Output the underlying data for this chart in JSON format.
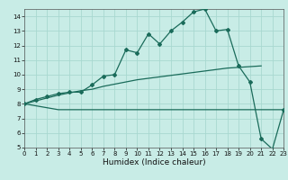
{
  "xlabel": "Humidex (Indice chaleur)",
  "bg_color": "#c8ece6",
  "grid_color": "#a8d8d0",
  "line_color": "#1a6b5a",
  "line1_x": [
    0,
    1,
    2,
    3,
    4,
    5,
    6,
    7,
    8,
    9,
    10,
    11,
    12,
    13,
    14,
    15,
    16,
    17,
    18,
    19,
    20,
    21,
    22,
    23
  ],
  "line1_y": [
    8.0,
    8.3,
    8.5,
    8.7,
    8.8,
    8.8,
    9.3,
    9.9,
    10.0,
    11.7,
    11.5,
    12.8,
    12.1,
    13.0,
    13.6,
    14.3,
    14.5,
    13.0,
    13.1,
    10.6,
    9.5,
    5.6,
    4.9,
    7.6
  ],
  "line2_x": [
    0,
    1,
    2,
    3,
    4,
    5,
    6,
    7,
    8,
    9,
    10,
    11,
    12,
    13,
    14,
    15,
    16,
    17,
    18,
    19,
    20,
    21
  ],
  "line2_y": [
    8.0,
    8.2,
    8.4,
    8.6,
    8.75,
    8.9,
    9.0,
    9.2,
    9.35,
    9.5,
    9.65,
    9.75,
    9.85,
    9.95,
    10.05,
    10.15,
    10.25,
    10.35,
    10.45,
    10.5,
    10.55,
    10.6
  ],
  "line3_x": [
    0,
    3,
    4,
    5,
    6,
    7,
    8,
    9,
    10,
    11,
    12,
    13,
    14,
    15,
    16,
    17,
    18,
    19,
    20,
    23
  ],
  "line3_y": [
    8.0,
    7.6,
    7.6,
    7.6,
    7.6,
    7.6,
    7.6,
    7.6,
    7.6,
    7.6,
    7.6,
    7.6,
    7.6,
    7.6,
    7.6,
    7.6,
    7.6,
    7.6,
    7.6,
    7.6
  ],
  "xlim": [
    0,
    23
  ],
  "ylim": [
    5,
    14.5
  ],
  "yticks": [
    5,
    6,
    7,
    8,
    9,
    10,
    11,
    12,
    13,
    14
  ],
  "xticks": [
    0,
    1,
    2,
    3,
    4,
    5,
    6,
    7,
    8,
    9,
    10,
    11,
    12,
    13,
    14,
    15,
    16,
    17,
    18,
    19,
    20,
    21,
    22,
    23
  ],
  "tick_fontsize": 5.0,
  "xlabel_fontsize": 6.5
}
